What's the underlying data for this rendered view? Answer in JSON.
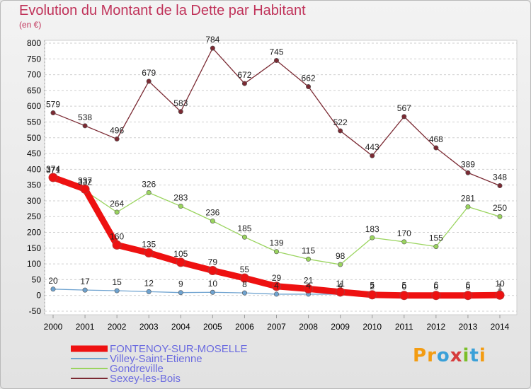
{
  "title": "Evolution du Montant de la Dette par Habitant",
  "unit": "(en €)",
  "logo": {
    "letters": [
      "P",
      "r",
      "o",
      "x",
      "i",
      "t",
      "i"
    ],
    "colors": [
      "#f39c12",
      "#f39c12",
      "#3aa0d8",
      "#d63b3b",
      "#7bbf2a",
      "#3aa0d8",
      "#f39c12"
    ]
  },
  "chart_data": {
    "type": "line",
    "x": [
      2000,
      2001,
      2002,
      2003,
      2004,
      2005,
      2006,
      2007,
      2008,
      2009,
      2010,
      2011,
      2012,
      2013,
      2014
    ],
    "ylim": [
      -50,
      800
    ],
    "yticks": [
      -50,
      0,
      50,
      100,
      150,
      200,
      250,
      300,
      350,
      400,
      450,
      500,
      550,
      600,
      650,
      700,
      750,
      800
    ],
    "grid": "horizontal dashed",
    "legend_position": "bottom-left",
    "series": [
      {
        "name": "Sexey-les-Bois",
        "color": "#7b2a33",
        "values": [
          579,
          538,
          496,
          679,
          583,
          784,
          672,
          745,
          662,
          522,
          443,
          567,
          468,
          389,
          348
        ]
      },
      {
        "name": "Gondreville",
        "color": "#9ad45e",
        "values": [
          371,
          332,
          264,
          326,
          283,
          236,
          185,
          139,
          115,
          98,
          183,
          170,
          155,
          281,
          250
        ]
      },
      {
        "name": "Villey-Saint-Etienne",
        "color": "#6fa3d0",
        "values": [
          20,
          17,
          15,
          12,
          9,
          10,
          8,
          4,
          4,
          4,
          5,
          5,
          6,
          6,
          10
        ]
      },
      {
        "name": "FONTENOY-SUR-MOSELLE",
        "color": "#ee1111",
        "values": [
          374,
          337,
          160,
          135,
          105,
          79,
          55,
          29,
          21,
          11,
          2,
          0,
          0,
          0,
          1
        ]
      }
    ],
    "legend_order": [
      "FONTENOY-SUR-MOSELLE",
      "Villey-Saint-Etienne",
      "Gondreville",
      "Sexey-les-Bois"
    ]
  }
}
